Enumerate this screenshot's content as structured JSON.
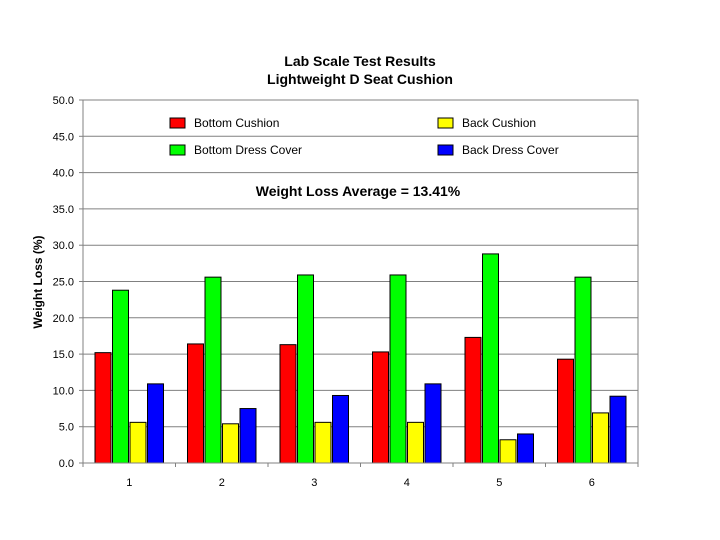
{
  "chart_data": {
    "type": "bar",
    "title": "Lab Scale Test Results",
    "subtitle": "Lightweight D Seat Cushion",
    "ylabel": "Weight Loss (%)",
    "xlabel": "",
    "ylim": [
      0,
      50
    ],
    "yticks": [
      "0.0",
      "5.0",
      "10.0",
      "15.0",
      "20.0",
      "25.0",
      "30.0",
      "35.0",
      "40.0",
      "45.0",
      "50.0"
    ],
    "categories": [
      "1",
      "2",
      "3",
      "4",
      "5",
      "6"
    ],
    "grid": "horizontal",
    "legend_position": "inside-top",
    "annotation": "Weight Loss Average = 13.41%",
    "series": [
      {
        "name": "Bottom Cushion",
        "color": "#ff0000",
        "values": [
          15.2,
          16.4,
          16.3,
          15.3,
          17.3,
          14.3
        ]
      },
      {
        "name": "Bottom Dress Cover",
        "color": "#00ff00",
        "values": [
          23.8,
          25.6,
          25.9,
          25.9,
          28.8,
          25.6
        ]
      },
      {
        "name": "Back Cushion",
        "color": "#ffff00",
        "values": [
          5.6,
          5.4,
          5.6,
          5.6,
          3.2,
          6.9
        ]
      },
      {
        "name": "Back Dress Cover",
        "color": "#0000ff",
        "values": [
          10.9,
          7.5,
          9.3,
          10.9,
          4.0,
          9.2
        ]
      }
    ]
  }
}
